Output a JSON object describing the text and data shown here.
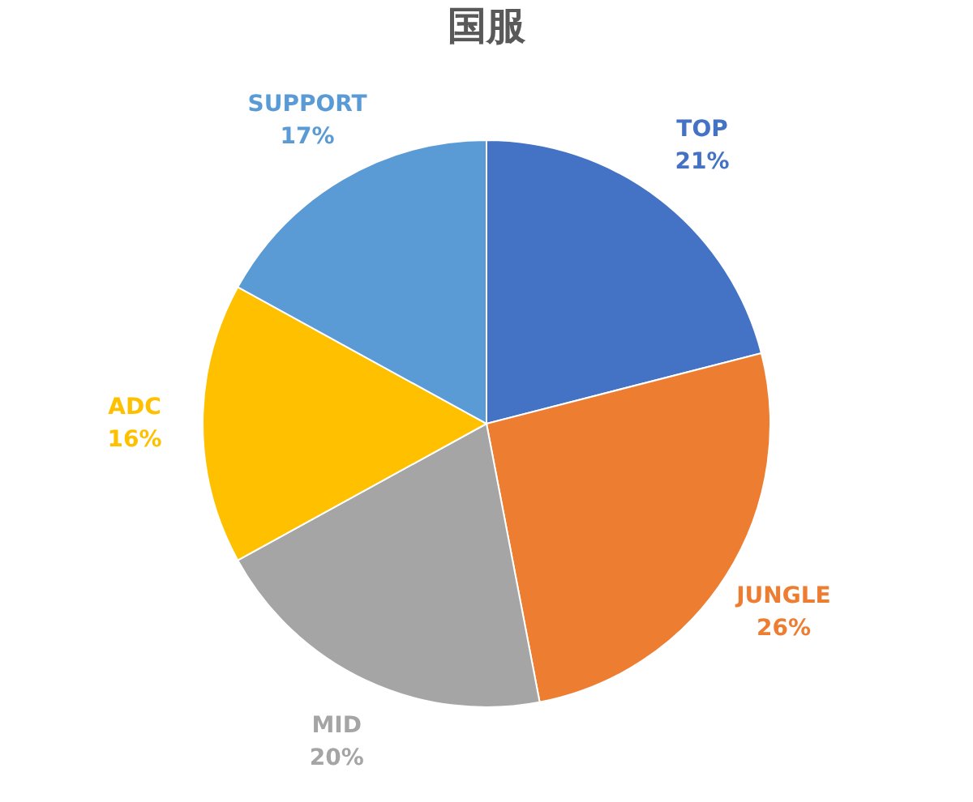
{
  "chart_data": {
    "type": "pie",
    "title": "国服",
    "categories": [
      "TOP",
      "JUNGLE",
      "MID",
      "ADC",
      "SUPPORT"
    ],
    "values": [
      21,
      26,
      20,
      16,
      17
    ],
    "value_labels": [
      "21%",
      "26%",
      "20%",
      "16%",
      "17%"
    ],
    "colors": [
      "#4472c4",
      "#ed7d31",
      "#a5a5a5",
      "#ffc000",
      "#5b9bd5"
    ],
    "legend": false
  }
}
